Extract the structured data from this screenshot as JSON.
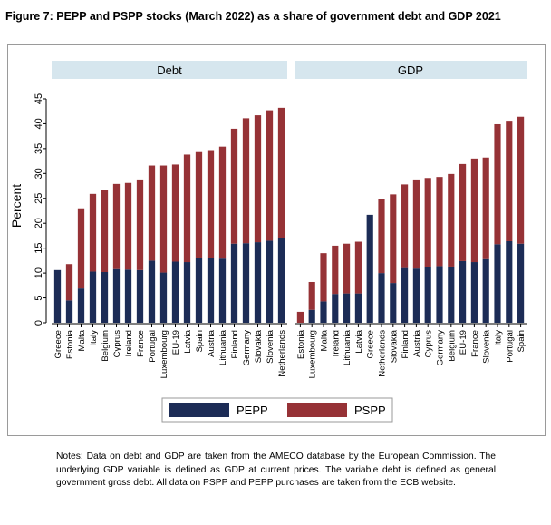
{
  "figure": {
    "title": "Figure 7: PEPP and PSPP stocks (March 2022) as a share of government debt and GDP 2021",
    "notes": "Notes: Data on debt and GDP are taken from the AMECO database by the European Commission. The underlying GDP variable is defined as GDP at current prices. The variable debt is defined as general government gross debt. All data on PSPP and PEPP purchases are taken from the ECB website."
  },
  "colors": {
    "pepp": "#1c2c56",
    "pspp": "#963236",
    "strip": "#d6e6ee",
    "axis": "#000000"
  },
  "chart_data": {
    "type": "bar",
    "stacked": true,
    "ylabel": "Percent",
    "yticks": [
      0,
      5,
      10,
      15,
      20,
      25,
      30,
      35,
      40,
      45
    ],
    "ylim": [
      0,
      47
    ],
    "legend": {
      "placement": "bottom",
      "entries": [
        "PEPP",
        "PSPP"
      ]
    },
    "series_names": [
      "PEPP",
      "PSPP"
    ],
    "panels": [
      {
        "title": "Debt",
        "categories": [
          "Greece",
          "Estonia",
          "Malta",
          "Italy",
          "Belgium",
          "Cyprus",
          "Ireland",
          "France",
          "Portugal",
          "Luxembourg",
          "EU-19",
          "Latvia",
          "Spain",
          "Austria",
          "Lithuania",
          "Finland",
          "Germany",
          "Slovakia",
          "Slovenia",
          "Netherlands"
        ],
        "series": [
          {
            "name": "PEPP",
            "values": [
              10.6,
              4.5,
              6.9,
              10.3,
              10.2,
              10.8,
              10.7,
              10.6,
              12.5,
              10.1,
              12.3,
              12.2,
              13.0,
              13.1,
              12.9,
              15.9,
              16.0,
              16.2,
              16.5,
              17.1
            ]
          },
          {
            "name": "PSPP",
            "values": [
              0.0,
              7.3,
              16.1,
              15.6,
              16.4,
              17.1,
              17.4,
              18.2,
              19.1,
              21.5,
              19.5,
              21.6,
              21.3,
              21.6,
              22.5,
              23.1,
              25.1,
              25.5,
              26.2,
              26.1
            ]
          }
        ]
      },
      {
        "title": "GDP",
        "categories": [
          "Estonia",
          "Luxembourg",
          "Malta",
          "Ireland",
          "Lithuania",
          "Latvia",
          "Greece",
          "Netherlands",
          "Slovakia",
          "Finland",
          "Austria",
          "Cyprus",
          "Germany",
          "Belgium",
          "EU-19",
          "France",
          "Slovenia",
          "Italy",
          "Portugal",
          "Spain"
        ],
        "series": [
          {
            "name": "PEPP",
            "values": [
              0.0,
              2.6,
              4.3,
              5.8,
              5.9,
              5.9,
              21.7,
              10.0,
              8.0,
              11.0,
              10.9,
              11.2,
              11.4,
              11.3,
              12.4,
              12.2,
              12.8,
              15.8,
              16.4,
              15.9
            ]
          },
          {
            "name": "PSPP",
            "values": [
              2.2,
              5.6,
              9.7,
              9.7,
              10.0,
              10.4,
              0.0,
              14.9,
              17.8,
              16.8,
              17.9,
              17.9,
              17.9,
              18.6,
              19.5,
              20.8,
              20.4,
              24.1,
              24.2,
              25.5
            ]
          }
        ]
      }
    ]
  }
}
